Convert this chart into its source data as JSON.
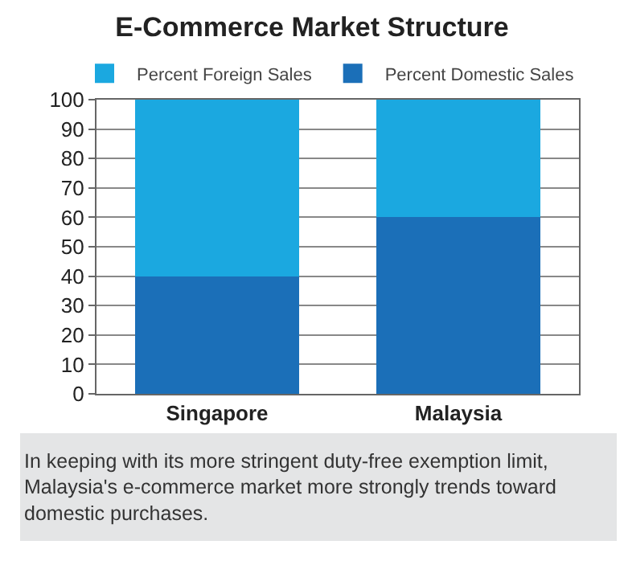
{
  "chart_data": {
    "type": "bar",
    "title": "E-Commerce Market Structure",
    "categories": [
      "Singapore",
      "Malaysia"
    ],
    "series": [
      {
        "name": "Percent Domestic Sales",
        "color": "#1b6fb8",
        "values": [
          40,
          60
        ]
      },
      {
        "name": "Percent Foreign Sales",
        "color": "#1ba8e0",
        "values": [
          60,
          40
        ]
      }
    ],
    "stacked": true,
    "ylim": [
      0,
      100
    ],
    "yticks": [
      0,
      10,
      20,
      30,
      40,
      50,
      60,
      70,
      80,
      90,
      100
    ],
    "grid": "y",
    "legend": "top",
    "annotations": [
      "In keeping with its more stringent duty-free exemption limit, Malaysia's e-commerce market more strongly trends toward domestic purchases."
    ]
  }
}
